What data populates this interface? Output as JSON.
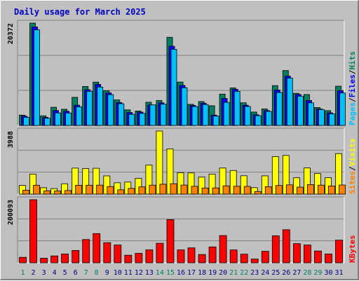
{
  "chart_data": {
    "type": "bar",
    "title": "Daily usage for March 2025",
    "days": [
      "1",
      "2",
      "3",
      "4",
      "5",
      "6",
      "7",
      "8",
      "9",
      "10",
      "11",
      "12",
      "13",
      "14",
      "15",
      "16",
      "17",
      "18",
      "19",
      "20",
      "21",
      "22",
      "23",
      "24",
      "25",
      "26",
      "27",
      "28",
      "29",
      "30",
      "31"
    ],
    "weekend_days": [
      1,
      7,
      8,
      14,
      15,
      21,
      22,
      28,
      29
    ],
    "panels": [
      {
        "name": "top",
        "scale_label": "20372",
        "max": 20372,
        "series": [
          {
            "name": "Hits",
            "color": "#00805f",
            "values": [
              2058,
              20372,
              1917,
              3607,
              3218,
              5595,
              7761,
              8623,
              6906,
              5076,
              3094,
              2872,
              4621,
              4969,
              17550,
              8642,
              4206,
              4757,
              3916,
              6238,
              7475,
              4507,
              2665,
              3288,
              7930,
              10932,
              6392,
              6158,
              3575,
              2943,
              7809
            ]
          },
          {
            "name": "Files",
            "color": "#0000ff",
            "values": [
              1852,
              19624,
              1598,
              2971,
              2839,
              4039,
              7116,
              8182,
              6493,
              4568,
              2571,
              2658,
              4070,
              4495,
              15773,
              7962,
              3975,
              4417,
              2052,
              5373,
              7203,
              4012,
              2122,
              2960,
              7055,
              9824,
              6159,
              4966,
              3289,
              2515,
              6921
            ]
          },
          {
            "name": "Pages",
            "color": "#00c0ff",
            "values": [
              1625,
              19040,
              1437,
              2479,
              2479,
              3708,
              6779,
              7648,
              6120,
              4329,
              2218,
              2401,
              4089,
              4228,
              15155,
              7502,
              3764,
              4153,
              1862,
              4589,
              6780,
              3763,
              1941,
              2788,
              6562,
              9420,
              5825,
              4489,
              3173,
              2315,
              6463
            ]
          }
        ]
      },
      {
        "name": "middle",
        "scale_label": "3988",
        "max": 3988,
        "series": [
          {
            "name": "Visits",
            "color": "#ffff00",
            "values": [
              548,
              1268,
              405,
              350,
              658,
              1644,
              1614,
              1633,
              1154,
              716,
              764,
              1001,
              1833,
              3988,
              2859,
              1351,
              1336,
              1077,
              1268,
              1648,
              1492,
              1163,
              408,
              1158,
              2374,
              2445,
              1032,
              1654,
              1303,
              1042,
              2562
            ]
          },
          {
            "name": "Sites",
            "color": "#ff8000",
            "values": [
              242,
              561,
              208,
              199,
              228,
              560,
              561,
              567,
              475,
              272,
              361,
              455,
              568,
              626,
              656,
              571,
              493,
              386,
              391,
              521,
              498,
              489,
              164,
              470,
              547,
              585,
              437,
              604,
              568,
              515,
              575
            ]
          }
        ]
      },
      {
        "name": "bottom",
        "scale_label": "200093",
        "max": 200093,
        "series": [
          {
            "name": "KBytes",
            "color": "#ff0000",
            "values": [
              17390,
              200093,
              14347,
              21738,
              27829,
              39130,
              73909,
              92608,
              63909,
              56519,
              23912,
              29999,
              40869,
              61956,
              136953,
              40869,
              47391,
              26304,
              50434,
              86521,
              40869,
              27386,
              11738,
              36521,
              85651,
              104999,
              60651,
              56521,
              37391,
              28043,
              71738
            ]
          }
        ]
      }
    ]
  }
}
